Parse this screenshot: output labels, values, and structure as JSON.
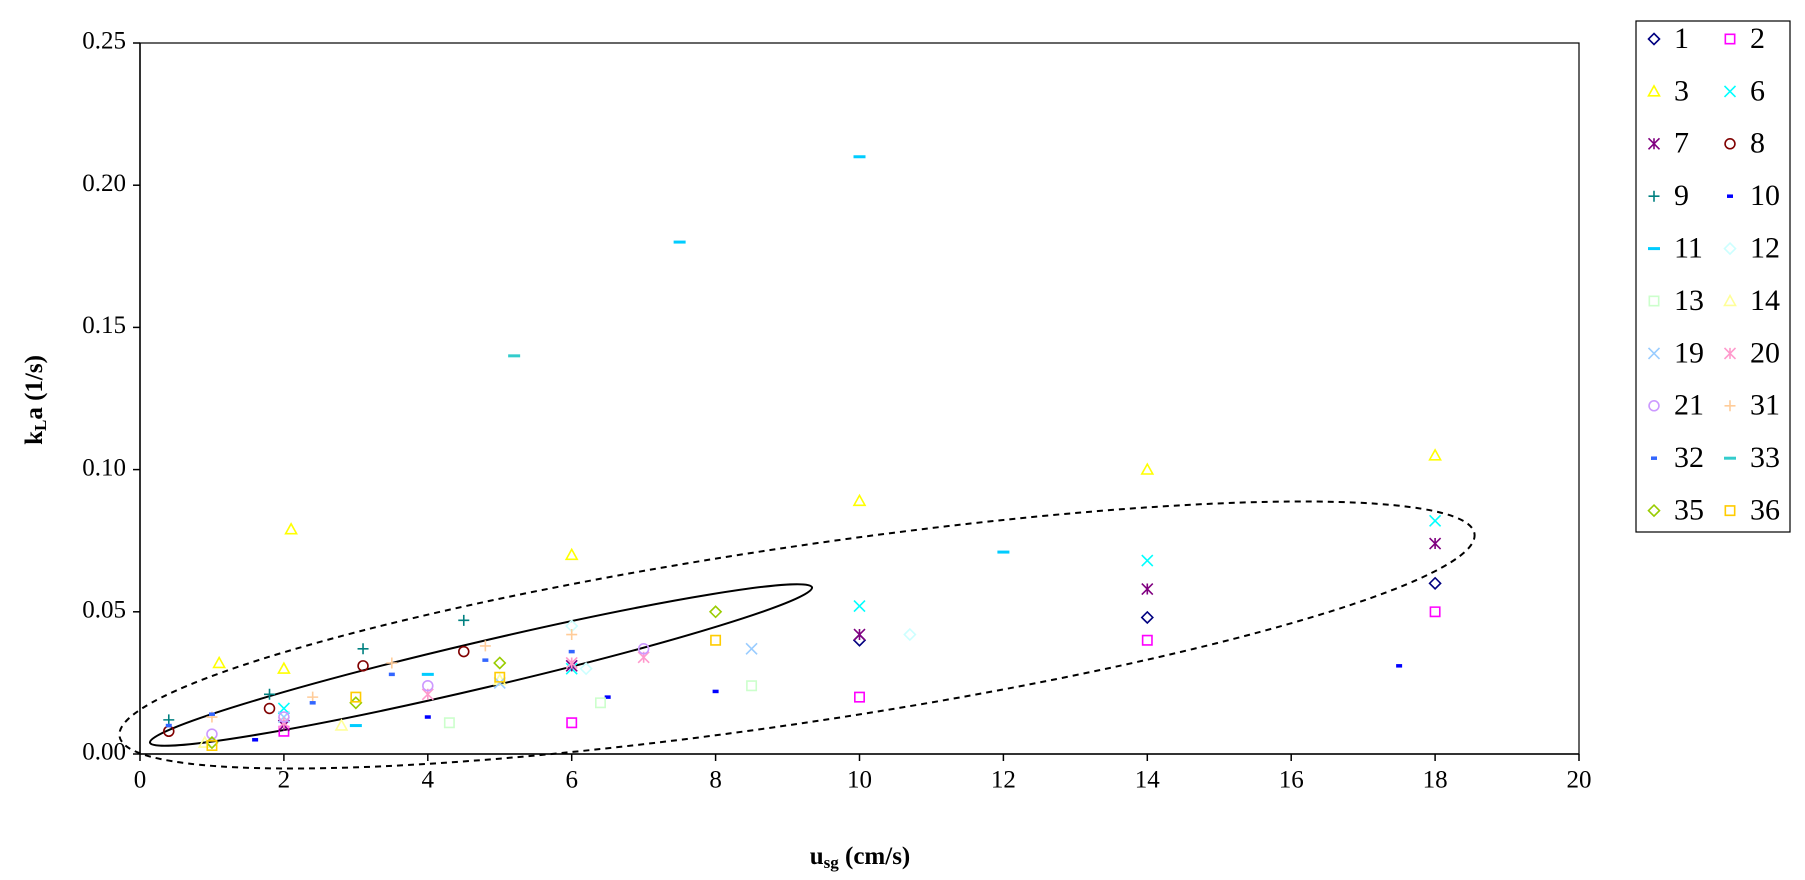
{
  "chart_data": {
    "type": "scatter",
    "x_label_parts": [
      "u",
      "sg",
      " (cm/s)"
    ],
    "y_label_parts": [
      "k",
      "L",
      "a (1/s)"
    ],
    "xlim": [
      0,
      20
    ],
    "xticks": [
      0,
      2,
      4,
      6,
      8,
      10,
      12,
      14,
      16,
      18,
      20
    ],
    "ylim": [
      0,
      0.25
    ],
    "yticks": [
      {
        "value": 0,
        "label": "0.00"
      },
      {
        "value": 0.05,
        "label": "0.05"
      },
      {
        "value": 0.1,
        "label": "0.10"
      },
      {
        "value": 0.15,
        "label": "0.15"
      },
      {
        "value": 0.2,
        "label": "0.20"
      },
      {
        "value": 0.25,
        "label": "0.25"
      }
    ],
    "legend": "right",
    "series": [
      {
        "name": "1",
        "marker": "diamond",
        "color": "#000080",
        "x": [
          10,
          14,
          18
        ],
        "values": [
          0.04,
          0.048,
          0.06
        ]
      },
      {
        "name": "2",
        "marker": "square",
        "color": "#FF00FF",
        "x": [
          2,
          6,
          10,
          14,
          18
        ],
        "values": [
          0.008,
          0.011,
          0.02,
          0.04,
          0.05
        ]
      },
      {
        "name": "3",
        "marker": "triangle",
        "color": "#FFFF00",
        "x": [
          1.1,
          2,
          2.1,
          6,
          10,
          14,
          18
        ],
        "values": [
          0.032,
          0.03,
          0.079,
          0.07,
          0.089,
          0.1,
          0.105
        ]
      },
      {
        "name": "6",
        "marker": "x",
        "color": "#00FFFF",
        "x": [
          2,
          6,
          10,
          14,
          18
        ],
        "values": [
          0.016,
          0.03,
          0.052,
          0.068,
          0.082
        ]
      },
      {
        "name": "7",
        "marker": "star",
        "color": "#800080",
        "x": [
          2,
          6,
          10,
          14,
          18
        ],
        "values": [
          0.01,
          0.031,
          0.042,
          0.058,
          0.074
        ]
      },
      {
        "name": "8",
        "marker": "circle",
        "color": "#800000",
        "x": [
          0.4,
          1.8,
          3.1,
          4.5
        ],
        "values": [
          0.008,
          0.016,
          0.031,
          0.036
        ]
      },
      {
        "name": "9",
        "marker": "plus",
        "color": "#008080",
        "x": [
          0.4,
          1.8,
          3.1,
          4.5
        ],
        "values": [
          0.012,
          0.021,
          0.037,
          0.047
        ]
      },
      {
        "name": "10",
        "marker": "dash",
        "color": "#0000FF",
        "x": [
          1.6,
          4,
          6.5,
          8,
          17.5
        ],
        "values": [
          0.005,
          0.013,
          0.02,
          0.022,
          0.031
        ]
      },
      {
        "name": "11",
        "marker": "longdash",
        "color": "#00CCFF",
        "x": [
          3,
          4,
          7.5,
          10,
          12
        ],
        "values": [
          0.01,
          0.028,
          0.18,
          0.21,
          0.071
        ]
      },
      {
        "name": "12",
        "marker": "diamond",
        "color": "#CCFFFF",
        "x": [
          6,
          6.2,
          10.7
        ],
        "values": [
          0.045,
          0.03,
          0.042
        ]
      },
      {
        "name": "13",
        "marker": "square",
        "color": "#CCFFCC",
        "x": [
          4.3,
          6.4,
          8.5
        ],
        "values": [
          0.011,
          0.018,
          0.024
        ]
      },
      {
        "name": "14",
        "marker": "triangle",
        "color": "#FFFF99",
        "x": [
          0.9,
          2.8,
          5
        ],
        "values": [
          0.004,
          0.01,
          0.026
        ]
      },
      {
        "name": "19",
        "marker": "x",
        "color": "#99CCFF",
        "x": [
          2,
          5,
          8.5
        ],
        "values": [
          0.013,
          0.025,
          0.037
        ]
      },
      {
        "name": "20",
        "marker": "star",
        "color": "#FF99CC",
        "x": [
          2,
          4,
          6,
          7
        ],
        "values": [
          0.011,
          0.021,
          0.032,
          0.034
        ]
      },
      {
        "name": "21",
        "marker": "circle",
        "color": "#CC99FF",
        "x": [
          1,
          2,
          4,
          7
        ],
        "values": [
          0.007,
          0.013,
          0.024,
          0.037
        ]
      },
      {
        "name": "31",
        "marker": "plus",
        "color": "#FFCC99",
        "x": [
          1,
          2.4,
          3.5,
          4.8,
          6
        ],
        "values": [
          0.013,
          0.02,
          0.032,
          0.038,
          0.042
        ]
      },
      {
        "name": "32",
        "marker": "dash",
        "color": "#3366FF",
        "x": [
          0.4,
          1,
          2.4,
          3.5,
          4.8,
          6
        ],
        "values": [
          0.01,
          0.014,
          0.018,
          0.028,
          0.033,
          0.036
        ]
      },
      {
        "name": "33",
        "marker": "longdash",
        "color": "#33CCCC",
        "x": [
          5.2
        ],
        "values": [
          0.14
        ]
      },
      {
        "name": "35",
        "marker": "diamond",
        "color": "#99CC00",
        "x": [
          1,
          3,
          5,
          8
        ],
        "values": [
          0.004,
          0.018,
          0.032,
          0.05
        ]
      },
      {
        "name": "36",
        "marker": "square",
        "color": "#FFCC00",
        "x": [
          1,
          3,
          5,
          8
        ],
        "values": [
          0.003,
          0.02,
          0.027,
          0.04
        ]
      }
    ]
  }
}
